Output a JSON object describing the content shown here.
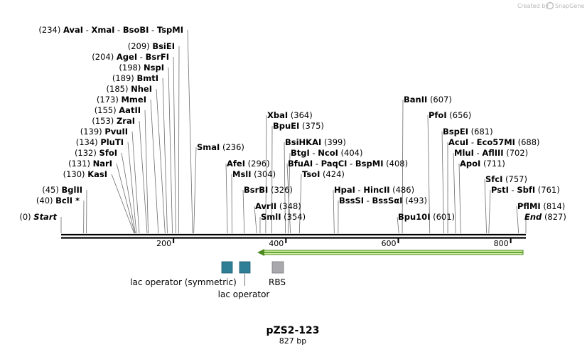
{
  "title": "pZS2-123",
  "subtitle": "827 bp",
  "branding": {
    "created_by": "Created by",
    "brand": "SnapGene"
  },
  "sequence_length": 827,
  "ruler_ticks": [
    "200",
    "400",
    "600",
    "800"
  ],
  "colors": {
    "backbone": "#000000",
    "operator": "#2f7f96",
    "rbs": "#a9a9ad",
    "arrow_fill": "#ccef9c",
    "arrow_line": "#4d8a1f"
  },
  "sites": [
    {
      "id": "start",
      "pos": "(0)",
      "parts": [
        {
          "t": "Start",
          "s": "em"
        }
      ]
    },
    {
      "id": "bclI",
      "pos": "(40)",
      "parts": [
        {
          "t": "BclI *",
          "s": "b"
        }
      ]
    },
    {
      "id": "bglII",
      "pos": "(45)",
      "parts": [
        {
          "t": "BglII",
          "s": "b"
        }
      ]
    },
    {
      "id": "kasI",
      "pos": "(130)",
      "parts": [
        {
          "t": "KasI",
          "s": "b"
        }
      ]
    },
    {
      "id": "narI",
      "pos": "(131)",
      "parts": [
        {
          "t": "NarI",
          "s": "b"
        }
      ]
    },
    {
      "id": "sfoI",
      "pos": "(132)",
      "parts": [
        {
          "t": "SfoI",
          "s": "b"
        }
      ]
    },
    {
      "id": "pluTI",
      "pos": "(134)",
      "parts": [
        {
          "t": "PluTI",
          "s": "b"
        }
      ]
    },
    {
      "id": "pvuII",
      "pos": "(139)",
      "parts": [
        {
          "t": "PvuII",
          "s": "b"
        }
      ]
    },
    {
      "id": "zraI",
      "pos": "(153)",
      "parts": [
        {
          "t": "ZraI",
          "s": "b"
        }
      ]
    },
    {
      "id": "aatII",
      "pos": "(155)",
      "parts": [
        {
          "t": "AatII",
          "s": "b"
        }
      ]
    },
    {
      "id": "mmeI",
      "pos": "(173)",
      "parts": [
        {
          "t": "MmeI",
          "s": "b"
        }
      ]
    },
    {
      "id": "nheI",
      "pos": "(185)",
      "parts": [
        {
          "t": "NheI",
          "s": "b"
        }
      ]
    },
    {
      "id": "bmtI",
      "pos": "(189)",
      "parts": [
        {
          "t": "BmtI",
          "s": "b"
        }
      ]
    },
    {
      "id": "nspI",
      "pos": "(198)",
      "parts": [
        {
          "t": "NspI",
          "s": "b"
        }
      ]
    },
    {
      "id": "ageI",
      "pos": "(204)",
      "parts": [
        {
          "t": "AgeI",
          "s": "b"
        },
        {
          "t": "  -  ",
          "s": "n"
        },
        {
          "t": "BsrFI",
          "s": "b"
        }
      ]
    },
    {
      "id": "bsiEI",
      "pos": "(209)",
      "parts": [
        {
          "t": "BsiEI",
          "s": "b"
        }
      ]
    },
    {
      "id": "avaI",
      "pos": "(234)",
      "parts": [
        {
          "t": "AvaI",
          "s": "b"
        },
        {
          "t": "  -  ",
          "s": "n"
        },
        {
          "t": "XmaI",
          "s": "b"
        },
        {
          "t": "  -  ",
          "s": "n"
        },
        {
          "t": "BsoBI",
          "s": "b"
        },
        {
          "t": "  -  ",
          "s": "n"
        },
        {
          "t": "TspMI",
          "s": "b"
        }
      ]
    },
    {
      "id": "smaI",
      "pos": "(236)",
      "parts": [
        {
          "t": "SmaI",
          "s": "b"
        }
      ]
    },
    {
      "id": "afeI",
      "pos": "(296)",
      "parts": [
        {
          "t": "AfeI",
          "s": "b"
        }
      ]
    },
    {
      "id": "mslI",
      "pos": "(304)",
      "parts": [
        {
          "t": "MslI",
          "s": "b"
        }
      ]
    },
    {
      "id": "bsrBI",
      "pos": "(326)",
      "parts": [
        {
          "t": "BsrBI",
          "s": "b"
        }
      ]
    },
    {
      "id": "avrII",
      "pos": "(348)",
      "parts": [
        {
          "t": "AvrII",
          "s": "b"
        }
      ]
    },
    {
      "id": "smlI",
      "pos": "(354)",
      "parts": [
        {
          "t": "SmlI",
          "s": "b"
        }
      ]
    },
    {
      "id": "xbaI",
      "pos": "(364)",
      "parts": [
        {
          "t": "XbaI",
          "s": "b"
        }
      ]
    },
    {
      "id": "bpuEI",
      "pos": "(375)",
      "parts": [
        {
          "t": "BpuEI",
          "s": "b"
        }
      ]
    },
    {
      "id": "bsiHKAI",
      "pos": "(399)",
      "parts": [
        {
          "t": "BsiHKAI",
          "s": "b"
        }
      ]
    },
    {
      "id": "btgI",
      "pos": "(404)",
      "parts": [
        {
          "t": "BtgI",
          "s": "b"
        },
        {
          "t": "  -  ",
          "s": "n"
        },
        {
          "t": "NcoI",
          "s": "b"
        }
      ]
    },
    {
      "id": "bfuAI",
      "pos": "(408)",
      "parts": [
        {
          "t": "BfuAI",
          "s": "b"
        },
        {
          "t": "  -  ",
          "s": "n"
        },
        {
          "t": "PaqCI",
          "s": "b"
        },
        {
          "t": "  -  ",
          "s": "n"
        },
        {
          "t": "BspMI",
          "s": "b"
        }
      ]
    },
    {
      "id": "tsoI",
      "pos": "(424)",
      "parts": [
        {
          "t": "TsoI",
          "s": "b"
        }
      ]
    },
    {
      "id": "hpaI",
      "pos": "(486)",
      "parts": [
        {
          "t": "HpaI",
          "s": "b"
        },
        {
          "t": "  -  ",
          "s": "n"
        },
        {
          "t": "HincII",
          "s": "b"
        }
      ]
    },
    {
      "id": "bssSI",
      "pos": "(493)",
      "parts": [
        {
          "t": "BssSI",
          "s": "b"
        },
        {
          "t": "  -  ",
          "s": "n"
        },
        {
          "t": "BssSαI",
          "s": "b"
        }
      ]
    },
    {
      "id": "bpu10I",
      "pos": "(601)",
      "parts": [
        {
          "t": "Bpu10I",
          "s": "b"
        }
      ]
    },
    {
      "id": "banII",
      "pos": "(607)",
      "parts": [
        {
          "t": "BanII",
          "s": "b"
        }
      ]
    },
    {
      "id": "pfoI",
      "pos": "(656)",
      "parts": [
        {
          "t": "PfoI",
          "s": "b"
        }
      ]
    },
    {
      "id": "bspEI",
      "pos": "(681)",
      "parts": [
        {
          "t": "BspEI",
          "s": "b"
        }
      ]
    },
    {
      "id": "acuI",
      "pos": "(688)",
      "parts": [
        {
          "t": "AcuI",
          "s": "b"
        },
        {
          "t": "  -  ",
          "s": "n"
        },
        {
          "t": "Eco57MI",
          "s": "b"
        }
      ]
    },
    {
      "id": "mluI",
      "pos": "(702)",
      "parts": [
        {
          "t": "MluI",
          "s": "b"
        },
        {
          "t": "  -  ",
          "s": "n"
        },
        {
          "t": "AflIII",
          "s": "b"
        }
      ]
    },
    {
      "id": "apoI",
      "pos": "(711)",
      "parts": [
        {
          "t": "ApoI",
          "s": "b"
        }
      ]
    },
    {
      "id": "sfcI",
      "pos": "(757)",
      "parts": [
        {
          "t": "SfcI",
          "s": "b"
        }
      ]
    },
    {
      "id": "pstI",
      "pos": "(761)",
      "parts": [
        {
          "t": "PstI",
          "s": "b"
        },
        {
          "t": "  -  ",
          "s": "n"
        },
        {
          "t": "SbfI",
          "s": "b"
        }
      ]
    },
    {
      "id": "pflMI",
      "pos": "(814)",
      "parts": [
        {
          "t": "PflMI",
          "s": "b"
        }
      ]
    },
    {
      "id": "end",
      "pos": "(827)",
      "parts": [
        {
          "t": "End",
          "s": "em"
        }
      ]
    }
  ],
  "features": [
    {
      "id": "lac-operator-symmetric",
      "label": "lac operator (symmetric)",
      "type": "operator"
    },
    {
      "id": "lac-operator",
      "label": "lac operator",
      "type": "operator"
    },
    {
      "id": "rbs",
      "label": "RBS",
      "type": "rbs"
    }
  ]
}
